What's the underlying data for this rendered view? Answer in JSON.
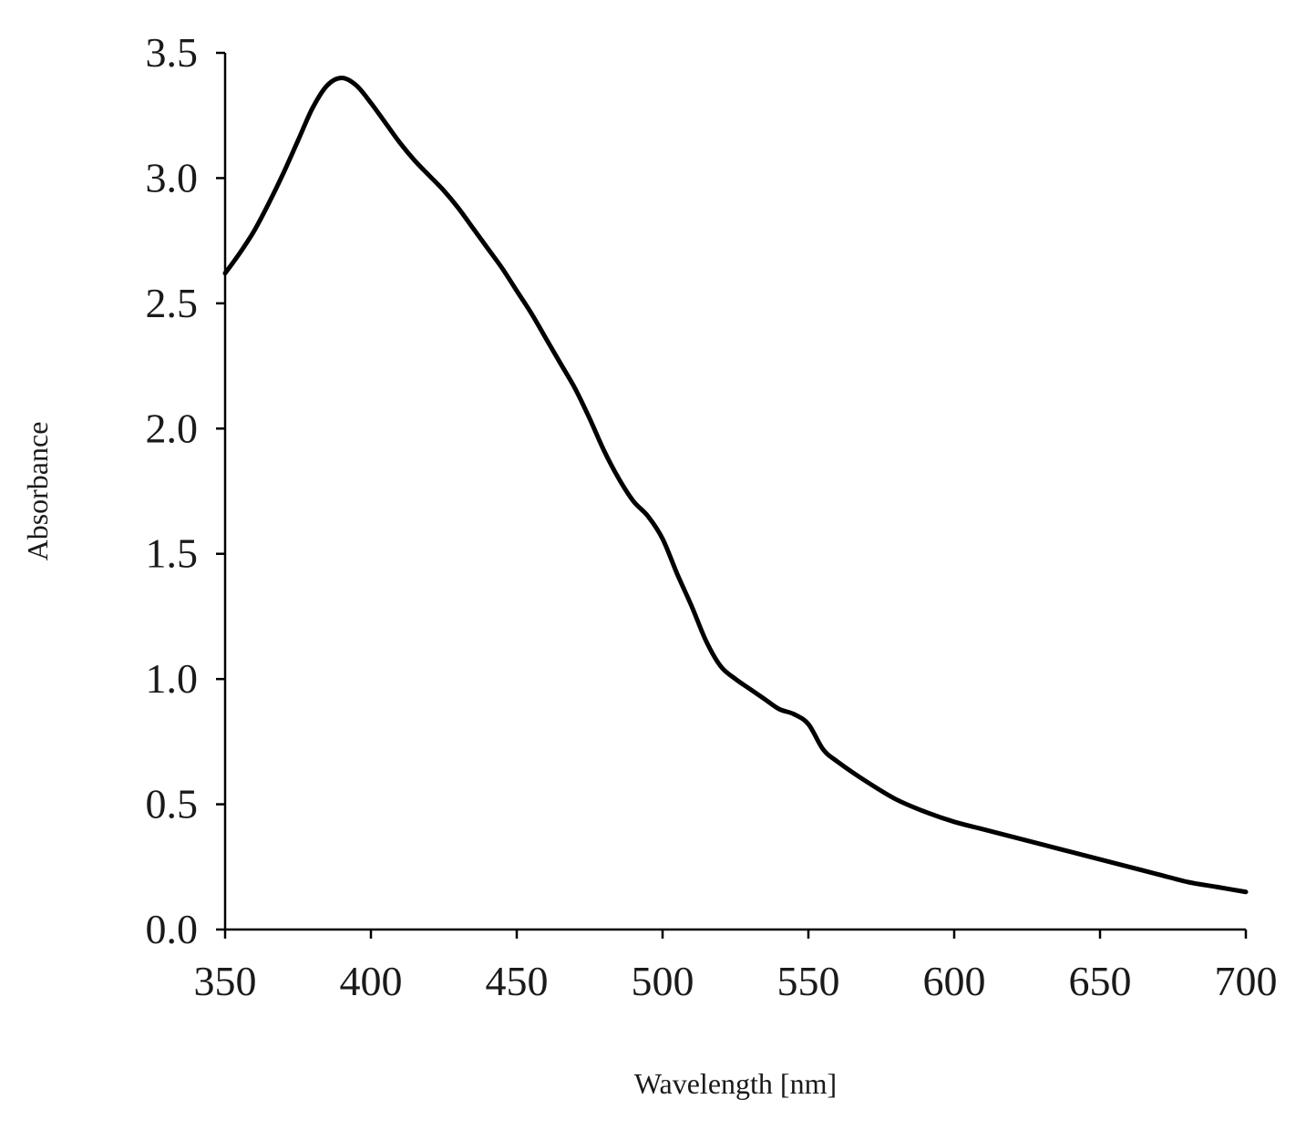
{
  "chart_data": {
    "type": "line",
    "title": "",
    "xlabel": "Wavelength [nm]",
    "ylabel": "Absorbance",
    "xlim": [
      350,
      700
    ],
    "ylim": [
      0.0,
      3.5
    ],
    "x_ticks": [
      350,
      400,
      450,
      500,
      550,
      600,
      650,
      700
    ],
    "x_tick_labels": [
      "350",
      "400",
      "450",
      "500",
      "550",
      "600",
      "650",
      "700"
    ],
    "y_ticks": [
      0.0,
      0.5,
      1.0,
      1.5,
      2.0,
      2.5,
      3.0,
      3.5
    ],
    "y_tick_labels": [
      "0.0",
      "0.5",
      "1.0",
      "1.5",
      "2.0",
      "2.5",
      "3.0",
      "3.5"
    ],
    "grid": false,
    "legend": "none",
    "series": [
      {
        "color": "#000000",
        "points": [
          [
            350,
            2.62
          ],
          [
            355,
            2.7
          ],
          [
            360,
            2.79
          ],
          [
            365,
            2.9
          ],
          [
            370,
            3.02
          ],
          [
            375,
            3.15
          ],
          [
            380,
            3.28
          ],
          [
            385,
            3.37
          ],
          [
            390,
            3.4
          ],
          [
            395,
            3.37
          ],
          [
            400,
            3.3
          ],
          [
            405,
            3.22
          ],
          [
            410,
            3.14
          ],
          [
            415,
            3.07
          ],
          [
            420,
            3.01
          ],
          [
            425,
            2.95
          ],
          [
            430,
            2.88
          ],
          [
            435,
            2.8
          ],
          [
            440,
            2.72
          ],
          [
            445,
            2.64
          ],
          [
            450,
            2.55
          ],
          [
            455,
            2.46
          ],
          [
            460,
            2.36
          ],
          [
            465,
            2.26
          ],
          [
            470,
            2.16
          ],
          [
            475,
            2.04
          ],
          [
            480,
            1.91
          ],
          [
            485,
            1.8
          ],
          [
            490,
            1.71
          ],
          [
            495,
            1.65
          ],
          [
            500,
            1.56
          ],
          [
            505,
            1.42
          ],
          [
            510,
            1.29
          ],
          [
            515,
            1.15
          ],
          [
            520,
            1.05
          ],
          [
            525,
            1.0
          ],
          [
            530,
            0.96
          ],
          [
            535,
            0.92
          ],
          [
            540,
            0.88
          ],
          [
            545,
            0.86
          ],
          [
            550,
            0.82
          ],
          [
            555,
            0.72
          ],
          [
            560,
            0.67
          ],
          [
            570,
            0.59
          ],
          [
            580,
            0.52
          ],
          [
            590,
            0.47
          ],
          [
            600,
            0.43
          ],
          [
            610,
            0.4
          ],
          [
            620,
            0.37
          ],
          [
            630,
            0.34
          ],
          [
            640,
            0.31
          ],
          [
            650,
            0.28
          ],
          [
            660,
            0.25
          ],
          [
            670,
            0.22
          ],
          [
            680,
            0.19
          ],
          [
            690,
            0.17
          ],
          [
            700,
            0.15
          ]
        ]
      }
    ]
  }
}
